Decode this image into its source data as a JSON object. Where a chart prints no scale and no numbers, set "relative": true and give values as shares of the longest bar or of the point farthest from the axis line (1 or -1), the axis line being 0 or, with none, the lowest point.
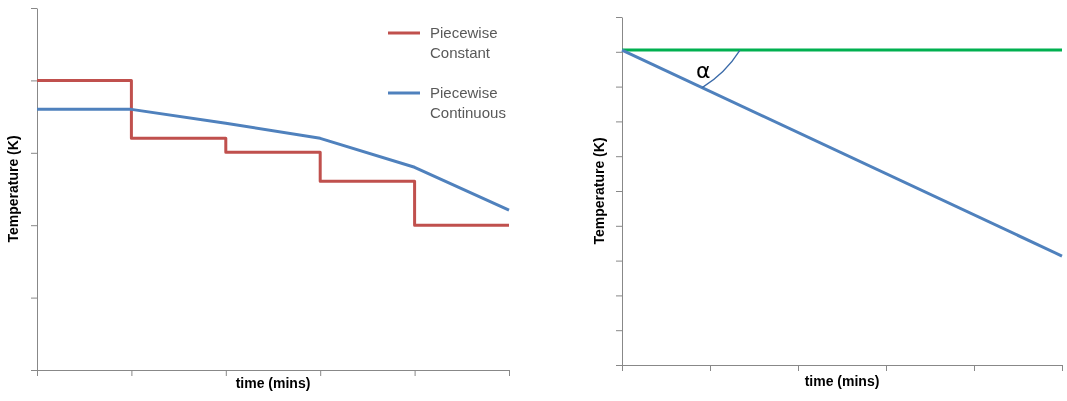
{
  "chart_data": [
    {
      "type": "line",
      "relative": true,
      "ylabel": "Temperature (K)",
      "xlabel": "time (mins)",
      "categories": [
        null,
        null,
        null,
        null,
        null,
        null
      ],
      "legend": "top right",
      "grid": false,
      "series": [
        {
          "name": "Piecewise Constant",
          "type": "step",
          "color": "#c0504d",
          "values": [
            1,
            0.8,
            0.752,
            0.652,
            0.5,
            0.5
          ]
        },
        {
          "name": "Piecewise Continuous",
          "color": "#4f81bd",
          "values": [
            0.9,
            0.9,
            0.852,
            0.8,
            0.7,
            0.552
          ]
        }
      ]
    },
    {
      "type": "line",
      "relative": true,
      "ylabel": "Temperature (K)",
      "xlabel": "time (mins)",
      "categories": [
        null,
        null
      ],
      "legend": false,
      "grid": false,
      "annotations": [
        "α"
      ],
      "series": [
        {
          "color": "#00b050",
          "values": [
            1,
            1
          ]
        },
        {
          "color": "#4f81bd",
          "values": [
            1,
            0.346
          ]
        }
      ]
    }
  ]
}
